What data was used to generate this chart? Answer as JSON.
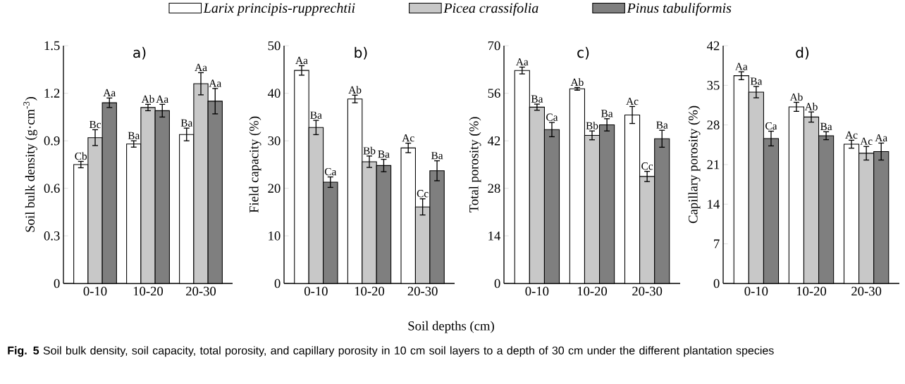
{
  "chart_data": [
    {
      "type": "bar",
      "title": "a)",
      "ylabel": "Soil bulk density (g·cm$^{-3}$)",
      "legend": "top",
      "annotations": [
        "**Fig. 5** Soil bulk density, soil capacity, total porosity, and capillary porosity in 10 cm soil layers to a depth of 30 cm under the different plantation species"
      ],
      "categories": [
        "0-10",
        "10-20",
        "20-30"
      ],
      "ylim": [
        0,
        1.5
      ],
      "yticks": [
        0,
        0.3,
        0.6,
        0.9,
        1.2,
        1.5
      ],
      "series": [
        {
          "name": "Larix principis-rupprechtii",
          "color": "#ffffff",
          "values": [
            0.75,
            0.88,
            0.94
          ],
          "errors": [
            0.02,
            0.02,
            0.04
          ],
          "value_labels": [
            "Cb",
            "Ba",
            "Ba"
          ]
        },
        {
          "name": "Picea crassifolia",
          "color": "#c8c8c8",
          "values": [
            0.92,
            1.11,
            1.26
          ],
          "errors": [
            0.05,
            0.02,
            0.07
          ],
          "value_labels": [
            "Bc",
            "Ab",
            "Aa"
          ]
        },
        {
          "name": "Pinus tabuliformis",
          "color": "#7f7f7f",
          "values": [
            1.14,
            1.09,
            1.15
          ],
          "errors": [
            0.03,
            0.04,
            0.08
          ],
          "value_labels": [
            "Aa",
            "Aa",
            "Aa"
          ]
        }
      ]
    },
    {
      "type": "bar",
      "title": "b)",
      "ylabel": "Field capacity (%)",
      "xlabel": "Soil depths (cm)",
      "categories": [
        "0-10",
        "10-20",
        "20-30"
      ],
      "ylim": [
        0,
        50
      ],
      "yticks": [
        0,
        10,
        20,
        30,
        40,
        50
      ],
      "series": [
        {
          "color": "#ffffff",
          "values": [
            44.8,
            38.8,
            28.5
          ],
          "errors": [
            1,
            0.8,
            1
          ],
          "value_labels": [
            "Aa",
            "Ab",
            "Ac"
          ]
        },
        {
          "color": "#c8c8c8",
          "values": [
            32.8,
            25.6,
            16.1
          ],
          "errors": [
            1.5,
            1.2,
            1.7
          ],
          "value_labels": [
            "Ba",
            "Bb",
            "Cc"
          ]
        },
        {
          "color": "#7f7f7f",
          "values": [
            21.3,
            24.8,
            23.7
          ],
          "errors": [
            1.1,
            1.3,
            2.1
          ],
          "value_labels": [
            "Ca",
            "Ba",
            "Ba"
          ]
        }
      ]
    },
    {
      "type": "bar",
      "title": "c)",
      "ylabel": "Total porosity (%)",
      "categories": [
        "0-10",
        "10-20",
        "20-30"
      ],
      "ylim": [
        0,
        70
      ],
      "yticks": [
        0,
        14,
        28,
        42,
        56,
        70
      ],
      "series": [
        {
          "color": "#ffffff",
          "values": [
            62.7,
            57.3,
            49.6
          ],
          "errors": [
            1,
            0.4,
            2.5
          ],
          "value_labels": [
            "Aa",
            "Ab",
            "Ac"
          ]
        },
        {
          "color": "#c8c8c8",
          "values": [
            51.9,
            43.6,
            31.5
          ],
          "errors": [
            0.9,
            1.3,
            1.5
          ],
          "value_labels": [
            "Ba",
            "Bb",
            "Cc"
          ]
        },
        {
          "color": "#7f7f7f",
          "values": [
            45.3,
            46.7,
            42.6
          ],
          "errors": [
            2.1,
            1.8,
            2.5
          ],
          "value_labels": [
            "Ca",
            "Ba",
            "Ba"
          ]
        }
      ]
    },
    {
      "type": "bar",
      "title": "d)",
      "ylabel": "Capillary porosity (%)",
      "categories": [
        "0-10",
        "10-20",
        "20-30"
      ],
      "ylim": [
        0,
        42
      ],
      "yticks": [
        0,
        7,
        14,
        21,
        28,
        35,
        42
      ],
      "series": [
        {
          "color": "#ffffff",
          "values": [
            36.7,
            31.2,
            24.6
          ],
          "errors": [
            0.7,
            0.8,
            0.7
          ],
          "value_labels": [
            "Aa",
            "Ab",
            "Ac"
          ]
        },
        {
          "color": "#c8c8c8",
          "values": [
            33.8,
            29.4,
            23.0
          ],
          "errors": [
            1,
            0.9,
            1.2
          ],
          "value_labels": [
            "Ba",
            "Ab",
            "Ac"
          ]
        },
        {
          "color": "#7f7f7f",
          "values": [
            25.6,
            26.1,
            23.3
          ],
          "errors": [
            1.3,
            0.7,
            1.5
          ],
          "value_labels": [
            "Ca",
            "Ba",
            "Aa"
          ]
        }
      ]
    }
  ]
}
